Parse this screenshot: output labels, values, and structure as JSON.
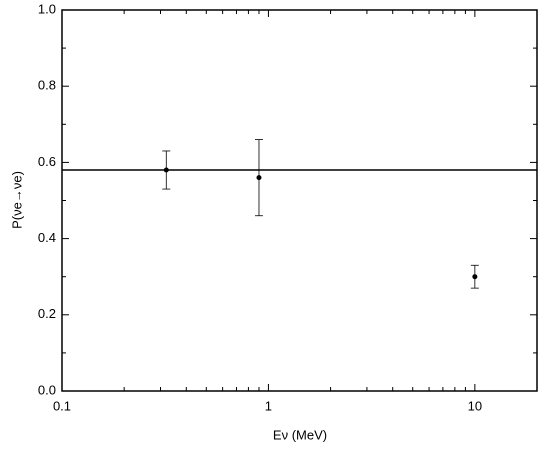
{
  "chart_data": {
    "type": "scatter",
    "xlabel": "Eν (MeV)",
    "ylabel": "P(νe→νe)",
    "x": [
      0.32,
      0.9,
      10
    ],
    "values": [
      0.58,
      0.56,
      0.3
    ],
    "errors": [
      0.05,
      0.1,
      0.03
    ],
    "color": "#000000",
    "reference_line": 0.58,
    "xlog": true,
    "xlim": [
      0.1,
      20
    ],
    "xticks": [
      0.1,
      1,
      10
    ],
    "xminorticks": [
      0.2,
      0.3,
      0.4,
      0.5,
      0.6,
      0.7,
      0.8,
      0.9,
      2,
      3,
      4,
      5,
      6,
      7,
      8,
      9,
      20
    ],
    "ylim": [
      0,
      1
    ],
    "yticks": [
      {
        "value": 0,
        "label": "0.0"
      },
      0.2,
      0.4,
      0.6,
      0.8,
      {
        "value": 1,
        "label": "1.0"
      }
    ],
    "yminorticks": [
      0.1,
      0.3,
      0.5,
      0.7,
      0.9
    ],
    "grid": false
  }
}
